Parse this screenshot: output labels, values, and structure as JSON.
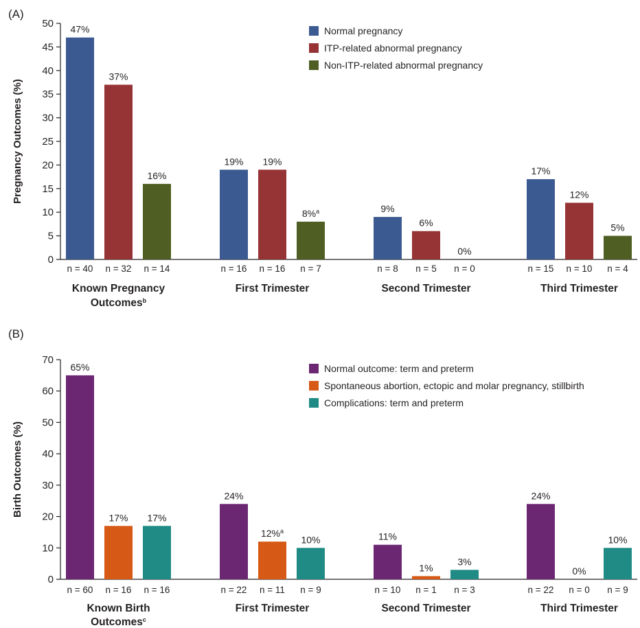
{
  "chart_data": [
    {
      "type": "bar",
      "panel_label": "(A)",
      "ylabel": "Pregnancy Outcomes (%)",
      "ylim": [
        0,
        50
      ],
      "yticks": [
        0,
        5,
        10,
        15,
        20,
        25,
        30,
        35,
        40,
        45,
        50
      ],
      "legend_position": "top-right",
      "categories": [
        {
          "label": "Known Pregnancy\nOutcomes",
          "superscript": "b"
        },
        {
          "label": "First Trimester",
          "superscript": ""
        },
        {
          "label": "Second Trimester",
          "superscript": ""
        },
        {
          "label": "Third Trimester",
          "superscript": ""
        }
      ],
      "series": [
        {
          "name": "Normal pregnancy",
          "color": "#3b5a91",
          "values": [
            47,
            19,
            9,
            17
          ],
          "labels": [
            "47%",
            "19%",
            "9%",
            "17%"
          ],
          "label_superscripts": [
            "",
            "",
            "",
            ""
          ],
          "n": [
            "n = 40",
            "n = 16",
            "n = 8",
            "n = 15"
          ]
        },
        {
          "name": "ITP-related abnormal pregnancy",
          "color": "#963335",
          "values": [
            37,
            19,
            6,
            12
          ],
          "labels": [
            "37%",
            "19%",
            "6%",
            "12%"
          ],
          "label_superscripts": [
            "",
            "",
            "",
            ""
          ],
          "n": [
            "n = 32",
            "n = 16",
            "n = 5",
            "n = 10"
          ]
        },
        {
          "name": "Non-ITP-related abnormal pregnancy",
          "color": "#4f5f24",
          "values": [
            16,
            8,
            0,
            5
          ],
          "labels": [
            "16%",
            "8%",
            "0%",
            "5%"
          ],
          "label_superscripts": [
            "",
            "a",
            "",
            ""
          ],
          "n": [
            "n = 14",
            "n = 7",
            "n = 0",
            "n = 4"
          ]
        }
      ]
    },
    {
      "type": "bar",
      "panel_label": "(B)",
      "ylabel": "Birth Outcomes (%)",
      "ylim": [
        0,
        70
      ],
      "yticks": [
        0,
        10,
        20,
        30,
        40,
        50,
        60,
        70
      ],
      "legend_position": "top-right",
      "categories": [
        {
          "label": "Known Birth\nOutcomes",
          "superscript": "c"
        },
        {
          "label": "First Trimester",
          "superscript": ""
        },
        {
          "label": "Second Trimester",
          "superscript": ""
        },
        {
          "label": "Third Trimester",
          "superscript": ""
        }
      ],
      "series": [
        {
          "name": "Normal outcome: term and preterm",
          "color": "#6c2773",
          "values": [
            65,
            24,
            11,
            24
          ],
          "labels": [
            "65%",
            "24%",
            "11%",
            "24%"
          ],
          "label_superscripts": [
            "",
            "",
            "",
            ""
          ],
          "n": [
            "n = 60",
            "n = 22",
            "n = 10",
            "n = 22"
          ]
        },
        {
          "name": "Spontaneous abortion, ectopic and molar pregnancy, stillbirth",
          "color": "#d65a16",
          "values": [
            17,
            12,
            1,
            0
          ],
          "labels": [
            "17%",
            "12%",
            "1%",
            "0%"
          ],
          "label_superscripts": [
            "",
            "a",
            "",
            ""
          ],
          "n": [
            "n = 16",
            "n = 11",
            "n = 1",
            "n = 0"
          ]
        },
        {
          "name": "Complications: term and preterm",
          "color": "#1f8b84",
          "values": [
            17,
            10,
            3,
            10
          ],
          "labels": [
            "17%",
            "10%",
            "3%",
            "10%"
          ],
          "label_superscripts": [
            "",
            "",
            "",
            ""
          ],
          "n": [
            "n = 16",
            "n = 9",
            "n = 3",
            "n = 9"
          ]
        }
      ]
    }
  ]
}
